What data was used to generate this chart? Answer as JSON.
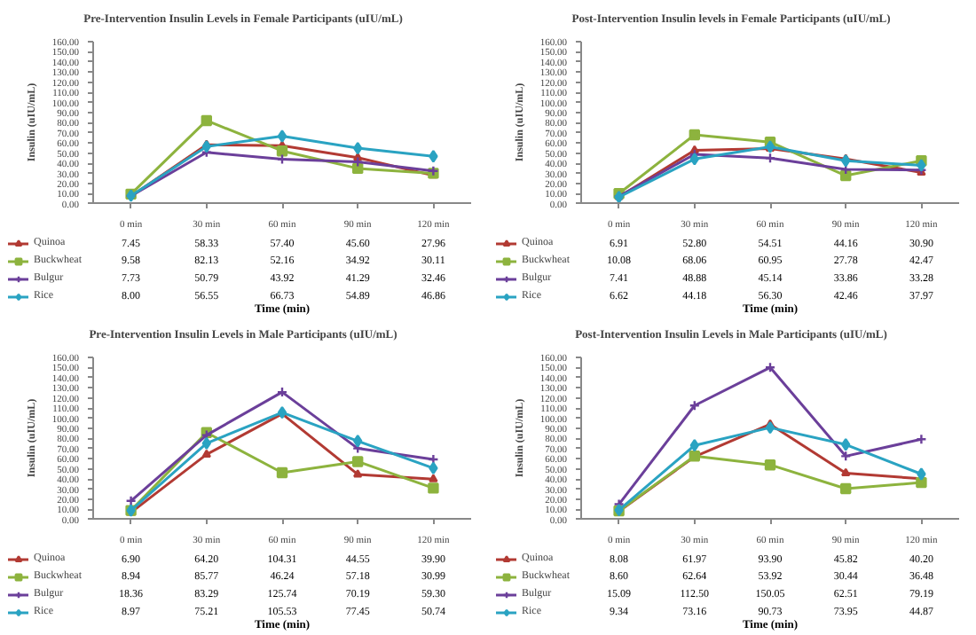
{
  "chart_data": [
    {
      "type": "line",
      "title": "Pre-Intervention Insulin Levels in Female Participants (uIU/mL)",
      "xlabel": "Time (min)",
      "ylabel": "Insulin (uIU/mL)",
      "categories": [
        "0 min",
        "30 min",
        "60 min",
        "90 min",
        "120 min"
      ],
      "ylim": [
        0,
        160
      ],
      "yticks": [
        {
          "value": 0,
          "label": "0.00"
        },
        {
          "value": 10,
          "label": "10.00"
        },
        {
          "value": 20,
          "label": "20.00"
        },
        {
          "value": 30,
          "label": "30.00"
        },
        {
          "value": 40,
          "label": "40.00"
        },
        {
          "value": 50,
          "label": "50.00"
        },
        {
          "value": 60,
          "label": "60.00"
        },
        {
          "value": 70,
          "label": "70.00"
        },
        {
          "value": 80,
          "label": "80.00"
        },
        {
          "value": 90,
          "label": "90.00"
        },
        {
          "value": 100,
          "label": "100.00"
        },
        {
          "value": 110,
          "label": "110.00"
        },
        {
          "value": 120,
          "label": "120.00"
        },
        {
          "value": 130,
          "label": "130.00"
        },
        {
          "value": 140,
          "label": "140.00"
        },
        {
          "value": 150,
          "label": "150.00"
        },
        {
          "value": 160,
          "label": "160.00"
        }
      ],
      "legend": "bottom",
      "grid": false,
      "series": [
        {
          "name": "Quinoa",
          "color": "#b23a33",
          "marker": "triangle",
          "values": [
            7.45,
            58.33,
            57.4,
            45.6,
            27.96
          ],
          "value_labels": [
            "7.45",
            "58.33",
            "57.40",
            "45.60",
            "27.96"
          ]
        },
        {
          "name": "Buckwheat",
          "color": "#8db33e",
          "marker": "square",
          "values": [
            9.58,
            82.13,
            52.16,
            34.92,
            30.11
          ],
          "value_labels": [
            "9.58",
            "82.13",
            "52.16",
            "34.92",
            "30.11"
          ]
        },
        {
          "name": "Bulgur",
          "color": "#6b3f9a",
          "marker": "cross",
          "values": [
            7.73,
            50.79,
            43.92,
            41.29,
            32.46
          ],
          "value_labels": [
            "7.73",
            "50.79",
            "43.92",
            "41.29",
            "32.46"
          ]
        },
        {
          "name": "Rice",
          "color": "#2aa3c2",
          "marker": "diamond",
          "values": [
            8.0,
            56.55,
            66.73,
            54.89,
            46.86
          ],
          "value_labels": [
            "8.00",
            "56.55",
            "66.73",
            "54.89",
            "46.86"
          ]
        }
      ]
    },
    {
      "type": "line",
      "title": "Post-Intervention Insulin levels in Female Participants (uIU/mL)",
      "xlabel": "Time (min)",
      "ylabel": "Insulin (uIU/mL)",
      "categories": [
        "0 min",
        "30 min",
        "60 min",
        "90 min",
        "120 min"
      ],
      "ylim": [
        0,
        160
      ],
      "yticks": [
        {
          "value": 0,
          "label": "0.00"
        },
        {
          "value": 10,
          "label": "10.00"
        },
        {
          "value": 20,
          "label": "20.00"
        },
        {
          "value": 30,
          "label": "30.00"
        },
        {
          "value": 40,
          "label": "40.00"
        },
        {
          "value": 50,
          "label": "50.00"
        },
        {
          "value": 60,
          "label": "60.00"
        },
        {
          "value": 70,
          "label": "70.00"
        },
        {
          "value": 80,
          "label": "80.00"
        },
        {
          "value": 90,
          "label": "90.00"
        },
        {
          "value": 100,
          "label": "100.00"
        },
        {
          "value": 110,
          "label": "110.00"
        },
        {
          "value": 120,
          "label": "120.00"
        },
        {
          "value": 130,
          "label": "130.00"
        },
        {
          "value": 140,
          "label": "140.00"
        },
        {
          "value": 150,
          "label": "150.00"
        },
        {
          "value": 160,
          "label": "160.00"
        }
      ],
      "legend": "bottom",
      "grid": false,
      "series": [
        {
          "name": "Quinoa",
          "color": "#b23a33",
          "marker": "triangle",
          "values": [
            6.91,
            52.8,
            54.51,
            44.16,
            30.9
          ],
          "value_labels": [
            "6.91",
            "52.80",
            "54.51",
            "44.16",
            "30.90"
          ]
        },
        {
          "name": "Buckwheat",
          "color": "#8db33e",
          "marker": "square",
          "values": [
            10.08,
            68.06,
            60.95,
            27.78,
            42.47
          ],
          "value_labels": [
            "10.08",
            "68.06",
            "60.95",
            "27.78",
            "42.47"
          ]
        },
        {
          "name": "Bulgur",
          "color": "#6b3f9a",
          "marker": "cross",
          "values": [
            7.41,
            48.88,
            45.14,
            33.86,
            33.28
          ],
          "value_labels": [
            "7.41",
            "48.88",
            "45.14",
            "33.86",
            "33.28"
          ]
        },
        {
          "name": "Rice",
          "color": "#2aa3c2",
          "marker": "diamond",
          "values": [
            6.62,
            44.18,
            56.3,
            42.46,
            37.97
          ],
          "value_labels": [
            "6.62",
            "44.18",
            "56.30",
            "42.46",
            "37.97"
          ]
        }
      ]
    },
    {
      "type": "line",
      "title": "Pre-Intervention Insulin Levels in Male Participants (uIU/mL)",
      "xlabel": "Time (min)",
      "ylabel": "Insulin (uIU/mL)",
      "categories": [
        "0 min",
        "30 min",
        "60 min",
        "90 min",
        "120 min"
      ],
      "ylim": [
        0,
        160
      ],
      "yticks": [
        {
          "value": 0,
          "label": "0.00"
        },
        {
          "value": 10,
          "label": "10.00"
        },
        {
          "value": 20,
          "label": "20.00"
        },
        {
          "value": 30,
          "label": "30.00"
        },
        {
          "value": 40,
          "label": "40.00"
        },
        {
          "value": 50,
          "label": "50.00"
        },
        {
          "value": 60,
          "label": "60.00"
        },
        {
          "value": 70,
          "label": "70.00"
        },
        {
          "value": 80,
          "label": "80.00"
        },
        {
          "value": 90,
          "label": "90.00"
        },
        {
          "value": 100,
          "label": "100.00"
        },
        {
          "value": 110,
          "label": "110.00"
        },
        {
          "value": 120,
          "label": "120.00"
        },
        {
          "value": 130,
          "label": "130.00"
        },
        {
          "value": 140,
          "label": "140.00"
        },
        {
          "value": 150,
          "label": "150.00"
        },
        {
          "value": 160,
          "label": "160.00"
        }
      ],
      "legend": "bottom",
      "grid": false,
      "series": [
        {
          "name": "Quinoa",
          "color": "#b23a33",
          "marker": "triangle",
          "values": [
            6.9,
            64.2,
            104.31,
            44.55,
            39.9
          ],
          "value_labels": [
            "6.90",
            "64.20",
            "104.31",
            "44.55",
            "39.90"
          ]
        },
        {
          "name": "Buckwheat",
          "color": "#8db33e",
          "marker": "square",
          "values": [
            8.94,
            85.77,
            46.24,
            57.18,
            30.99
          ],
          "value_labels": [
            "8.94",
            "85.77",
            "46.24",
            "57.18",
            "30.99"
          ]
        },
        {
          "name": "Bulgur",
          "color": "#6b3f9a",
          "marker": "cross",
          "values": [
            18.36,
            83.29,
            125.74,
            70.19,
            59.3
          ],
          "value_labels": [
            "18.36",
            "83.29",
            "125.74",
            "70.19",
            "59.30"
          ]
        },
        {
          "name": "Rice",
          "color": "#2aa3c2",
          "marker": "diamond",
          "values": [
            8.97,
            75.21,
            105.53,
            77.45,
            50.74
          ],
          "value_labels": [
            "8.97",
            "75.21",
            "105.53",
            "77.45",
            "50.74"
          ]
        }
      ]
    },
    {
      "type": "line",
      "title": "Post-Intervention Insulin Levels in Male Participants (uIU/mL)",
      "xlabel": "Time (min)",
      "ylabel": "Insulin (uIU/mL)",
      "categories": [
        "0 min",
        "30 min",
        "60 min",
        "90 min",
        "120 min"
      ],
      "ylim": [
        0,
        160
      ],
      "yticks": [
        {
          "value": 0,
          "label": "0.00"
        },
        {
          "value": 10,
          "label": "10.00"
        },
        {
          "value": 20,
          "label": "20.00"
        },
        {
          "value": 30,
          "label": "30.00"
        },
        {
          "value": 40,
          "label": "40.00"
        },
        {
          "value": 50,
          "label": "50.00"
        },
        {
          "value": 60,
          "label": "60.00"
        },
        {
          "value": 70,
          "label": "70.00"
        },
        {
          "value": 80,
          "label": "80.00"
        },
        {
          "value": 90,
          "label": "90.00"
        },
        {
          "value": 100,
          "label": "100.00"
        },
        {
          "value": 110,
          "label": "110.00"
        },
        {
          "value": 120,
          "label": "120.00"
        },
        {
          "value": 130,
          "label": "130.00"
        },
        {
          "value": 140,
          "label": "140.00"
        },
        {
          "value": 150,
          "label": "150.00"
        },
        {
          "value": 160,
          "label": "160.00"
        }
      ],
      "legend": "bottom",
      "grid": false,
      "series": [
        {
          "name": "Quinoa",
          "color": "#b23a33",
          "marker": "triangle",
          "values": [
            8.08,
            61.97,
            93.9,
            45.82,
            40.2
          ],
          "value_labels": [
            "8.08",
            "61.97",
            "93.90",
            "45.82",
            "40.20"
          ]
        },
        {
          "name": "Buckwheat",
          "color": "#8db33e",
          "marker": "square",
          "values": [
            8.6,
            62.64,
            53.92,
            30.44,
            36.48
          ],
          "value_labels": [
            "8.60",
            "62.64",
            "53.92",
            "30.44",
            "36.48"
          ]
        },
        {
          "name": "Bulgur",
          "color": "#6b3f9a",
          "marker": "cross",
          "values": [
            15.09,
            112.5,
            150.05,
            62.51,
            79.19
          ],
          "value_labels": [
            "15.09",
            "112.50",
            "150.05",
            "62.51",
            "79.19"
          ]
        },
        {
          "name": "Rice",
          "color": "#2aa3c2",
          "marker": "diamond",
          "values": [
            9.34,
            73.16,
            90.73,
            73.95,
            44.87
          ],
          "value_labels": [
            "9.34",
            "73.16",
            "90.73",
            "73.95",
            "44.87"
          ]
        }
      ]
    }
  ]
}
